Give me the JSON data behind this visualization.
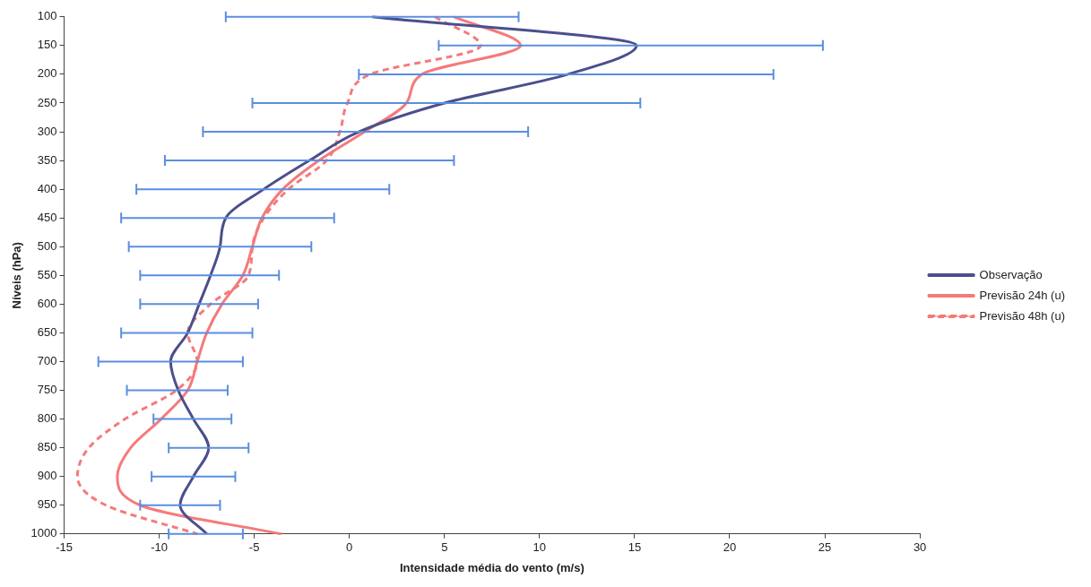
{
  "chart_data": {
    "type": "line",
    "orientation": "horizontal",
    "xlabel": "Intensidade média do vento (m/s)",
    "ylabel": "Níveis (hPa)",
    "categories": [
      "100",
      "150",
      "200",
      "250",
      "300",
      "350",
      "400",
      "450",
      "500",
      "550",
      "600",
      "650",
      "700",
      "750",
      "800",
      "850",
      "900",
      "950",
      "1000"
    ],
    "xlim": [
      -15,
      30
    ],
    "xticks": [
      -15,
      -10,
      -5,
      0,
      5,
      10,
      15,
      20,
      25,
      30
    ],
    "grid": false,
    "legend": "right",
    "series": [
      {
        "name": "Observação",
        "color": "#4b4f8c",
        "line_style": "solid",
        "values": [
          1.2,
          15.1,
          11.5,
          5.0,
          0.5,
          -2.1,
          -4.5,
          -6.5,
          -6.8,
          -7.3,
          -7.9,
          -8.5,
          -9.4,
          -9.0,
          -8.2,
          -7.4,
          -8.2,
          -8.9,
          -7.5
        ],
        "errors": [
          [
            -6.5,
            8.9
          ],
          [
            4.7,
            24.9
          ],
          [
            0.5,
            22.3
          ],
          [
            -5.1,
            15.3
          ],
          [
            -7.7,
            9.4
          ],
          [
            -9.7,
            5.5
          ],
          [
            -11.2,
            2.1
          ],
          [
            -12.0,
            -0.8
          ],
          [
            -11.6,
            -2.0
          ],
          [
            -11.0,
            -3.7
          ],
          [
            -11.0,
            -4.8
          ],
          [
            -12.0,
            -5.1
          ],
          [
            -13.2,
            -5.6
          ],
          [
            -11.7,
            -6.4
          ],
          [
            -10.3,
            -6.2
          ],
          [
            -9.5,
            -5.3
          ],
          [
            -10.4,
            -6.0
          ],
          [
            -11.0,
            -6.8
          ],
          [
            -9.5,
            -5.6
          ]
        ]
      },
      {
        "name": "Previsão 24h (u)",
        "color": "#f57a7a",
        "line_style": "solid",
        "values": [
          5.5,
          9.0,
          3.8,
          3.0,
          0.8,
          -1.6,
          -3.5,
          -4.6,
          -5.1,
          -5.6,
          -6.7,
          -7.5,
          -8.0,
          -8.5,
          -9.9,
          -11.5,
          -12.2,
          -11.0,
          -3.6
        ]
      },
      {
        "name": "Previsão 48h (u)",
        "color": "#f57a7a",
        "line_style": "dashed",
        "values": [
          4.5,
          6.9,
          1.1,
          -0.1,
          -0.5,
          -1.2,
          -3.2,
          -4.5,
          -5.1,
          -5.3,
          -7.3,
          -8.5,
          -8.0,
          -9.1,
          -11.8,
          -13.7,
          -14.3,
          -12.8,
          -8.0
        ]
      }
    ]
  }
}
